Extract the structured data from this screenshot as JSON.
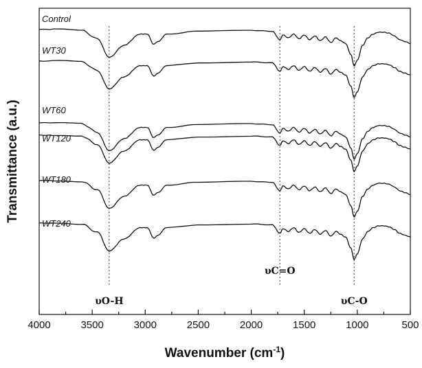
{
  "chart_data": {
    "type": "line",
    "xlabel": "Wavenumber (cm",
    "xlabel_sup": "-1",
    "xlabel_close": ")",
    "ylabel": "Transmittance (a.u.)",
    "xlim": [
      4000,
      500
    ],
    "x_reversed": true,
    "x_ticks": [
      4000,
      3500,
      3000,
      2500,
      2000,
      1500,
      1000,
      500
    ],
    "y_ticks_shown": false,
    "grid": false,
    "legend": "none",
    "series_labels": [
      "Control",
      "WT30",
      "WT60",
      "WT120",
      "WT180",
      "WT240"
    ],
    "annotations": [
      {
        "text": "υO-H",
        "x": 3340
      },
      {
        "text": "υC=O",
        "x": 1730
      },
      {
        "text": "υC-O",
        "x": 1030
      }
    ],
    "series": [
      {
        "name": "Control",
        "x": [
          4000,
          3800,
          3600,
          3450,
          3340,
          3200,
          3050,
          2980,
          2920,
          2880,
          2800,
          2500,
          2000,
          1800,
          1730,
          1700,
          1650,
          1600,
          1550,
          1500,
          1450,
          1400,
          1350,
          1300,
          1250,
          1200,
          1160,
          1110,
          1060,
          1030,
          1000,
          950,
          900,
          850,
          800,
          750,
          700,
          650,
          600,
          550,
          500
        ],
        "y": [
          95,
          95,
          94,
          85,
          65,
          78,
          90,
          90,
          79,
          82,
          90,
          93,
          94,
          93,
          84,
          89,
          86,
          90,
          85,
          89,
          84,
          88,
          83,
          87,
          81,
          86,
          83,
          80,
          68,
          56,
          62,
          78,
          86,
          90,
          92,
          92,
          91,
          88,
          84,
          82,
          80
        ]
      },
      {
        "name": "WT30",
        "x": [
          4000,
          3800,
          3600,
          3450,
          3340,
          3200,
          3050,
          2980,
          2920,
          2880,
          2800,
          2500,
          2000,
          1800,
          1730,
          1700,
          1650,
          1600,
          1550,
          1500,
          1450,
          1400,
          1350,
          1300,
          1250,
          1200,
          1160,
          1110,
          1060,
          1030,
          1000,
          950,
          900,
          850,
          800,
          750,
          700,
          650,
          600,
          550,
          500
        ],
        "y": [
          95,
          95,
          94,
          85,
          65,
          78,
          90,
          90,
          79,
          82,
          90,
          93,
          94,
          93,
          84,
          89,
          86,
          90,
          85,
          89,
          84,
          88,
          83,
          87,
          81,
          86,
          83,
          80,
          68,
          56,
          62,
          78,
          86,
          90,
          92,
          92,
          91,
          88,
          84,
          82,
          80
        ]
      },
      {
        "name": "WT60",
        "x": [
          4000,
          3800,
          3600,
          3450,
          3340,
          3200,
          3050,
          2980,
          2920,
          2880,
          2800,
          2500,
          2000,
          1800,
          1730,
          1700,
          1650,
          1600,
          1550,
          1500,
          1450,
          1400,
          1350,
          1300,
          1250,
          1200,
          1160,
          1110,
          1060,
          1030,
          1000,
          950,
          900,
          850,
          800,
          750,
          700,
          650,
          600,
          550,
          500
        ],
        "y": [
          95,
          95,
          94,
          85,
          65,
          78,
          90,
          90,
          79,
          82,
          90,
          93,
          94,
          93,
          84,
          89,
          86,
          90,
          85,
          89,
          84,
          88,
          83,
          87,
          81,
          86,
          83,
          80,
          68,
          56,
          62,
          78,
          86,
          90,
          92,
          92,
          91,
          88,
          84,
          82,
          80
        ]
      },
      {
        "name": "WT120",
        "x": [
          4000,
          3800,
          3600,
          3450,
          3340,
          3200,
          3050,
          2980,
          2920,
          2880,
          2800,
          2500,
          2000,
          1800,
          1730,
          1700,
          1650,
          1600,
          1550,
          1500,
          1450,
          1400,
          1350,
          1300,
          1250,
          1200,
          1160,
          1110,
          1060,
          1030,
          1000,
          950,
          900,
          850,
          800,
          750,
          700,
          650,
          600,
          550,
          500
        ],
        "y": [
          95,
          95,
          94,
          85,
          65,
          78,
          90,
          90,
          79,
          82,
          90,
          93,
          94,
          93,
          84,
          89,
          86,
          90,
          85,
          89,
          84,
          88,
          83,
          87,
          81,
          86,
          83,
          80,
          68,
          56,
          62,
          78,
          86,
          90,
          92,
          92,
          91,
          88,
          84,
          82,
          80
        ]
      },
      {
        "name": "WT180",
        "x": [
          4000,
          3800,
          3600,
          3450,
          3340,
          3200,
          3050,
          2980,
          2920,
          2880,
          2800,
          2500,
          2000,
          1800,
          1730,
          1700,
          1650,
          1600,
          1550,
          1500,
          1450,
          1400,
          1350,
          1300,
          1250,
          1200,
          1160,
          1110,
          1060,
          1030,
          1000,
          950,
          900,
          850,
          800,
          750,
          700,
          650,
          600,
          550,
          500
        ],
        "y": [
          95,
          95,
          94,
          85,
          65,
          78,
          90,
          90,
          79,
          82,
          90,
          93,
          94,
          93,
          84,
          89,
          86,
          90,
          85,
          89,
          84,
          88,
          83,
          87,
          81,
          86,
          83,
          80,
          68,
          56,
          62,
          78,
          86,
          90,
          92,
          92,
          91,
          88,
          84,
          82,
          80
        ]
      },
      {
        "name": "WT240",
        "x": [
          4000,
          3800,
          3600,
          3450,
          3340,
          3200,
          3050,
          2980,
          2920,
          2880,
          2800,
          2500,
          2000,
          1800,
          1730,
          1700,
          1650,
          1600,
          1550,
          1500,
          1450,
          1400,
          1350,
          1300,
          1250,
          1200,
          1160,
          1110,
          1060,
          1030,
          1000,
          950,
          900,
          850,
          800,
          750,
          700,
          650,
          600,
          550,
          500
        ],
        "y": [
          95,
          95,
          94,
          85,
          65,
          78,
          90,
          90,
          79,
          82,
          90,
          93,
          94,
          93,
          84,
          89,
          86,
          90,
          85,
          89,
          84,
          88,
          83,
          87,
          81,
          86,
          83,
          80,
          68,
          56,
          62,
          78,
          86,
          90,
          92,
          92,
          91,
          88,
          84,
          82,
          80
        ]
      }
    ]
  }
}
